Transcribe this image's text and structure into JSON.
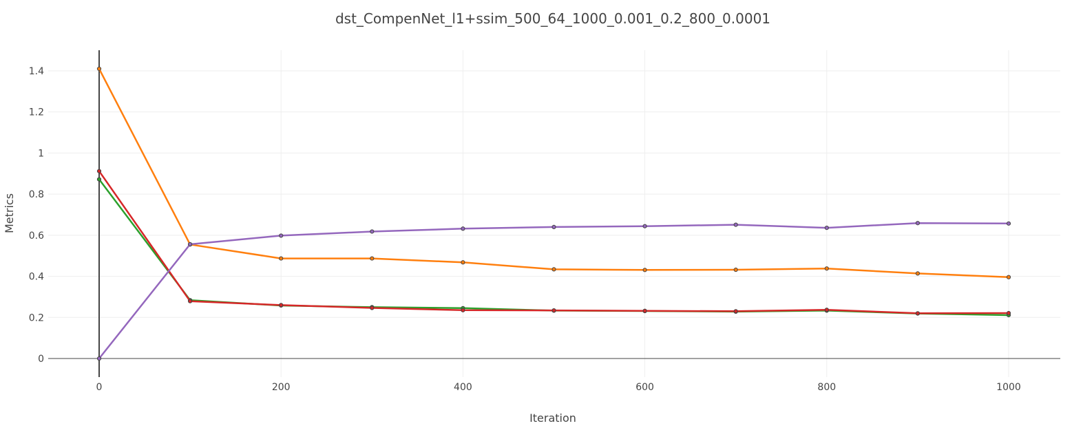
{
  "chart_data": {
    "type": "line",
    "title": "dst_CompenNet_l1+ssim_500_64_1000_0.001_0.2_800_0.0001",
    "xlabel": "Iteration",
    "ylabel": "Metrics",
    "xlim": [
      -55,
      1055
    ],
    "ylim": [
      -0.09,
      1.5
    ],
    "grid": true,
    "legend": "none",
    "x_ticks": [
      0,
      200,
      400,
      600,
      800,
      1000
    ],
    "x_tick_labels": [
      "0",
      "200",
      "400",
      "600",
      "800",
      "1000"
    ],
    "y_ticks": [
      0,
      0.2,
      0.4,
      0.6,
      0.8,
      1,
      1.2,
      1.4
    ],
    "y_tick_labels": [
      "0",
      "0.2",
      "0.4",
      "0.6",
      "0.8",
      "1",
      "1.2",
      "1.4"
    ],
    "x": [
      0,
      100,
      200,
      300,
      400,
      500,
      600,
      700,
      800,
      900,
      1000
    ],
    "series": [
      {
        "name": "orange-series",
        "color": "#ff7f0e",
        "values": [
          1.41,
          0.555,
          0.487,
          0.487,
          0.468,
          0.434,
          0.431,
          0.432,
          0.438,
          0.414,
          0.396
        ]
      },
      {
        "name": "green-series",
        "color": "#2ca02c",
        "values": [
          0.872,
          0.284,
          0.258,
          0.25,
          0.245,
          0.233,
          0.231,
          0.228,
          0.233,
          0.219,
          0.211
        ]
      },
      {
        "name": "red-series",
        "color": "#d62728",
        "values": [
          0.912,
          0.279,
          0.26,
          0.246,
          0.235,
          0.234,
          0.232,
          0.23,
          0.237,
          0.22,
          0.221
        ]
      },
      {
        "name": "purple-series",
        "color": "#9467bd",
        "values": [
          0.0,
          0.556,
          0.598,
          0.618,
          0.632,
          0.64,
          0.644,
          0.651,
          0.636,
          0.659,
          0.657
        ]
      }
    ]
  }
}
